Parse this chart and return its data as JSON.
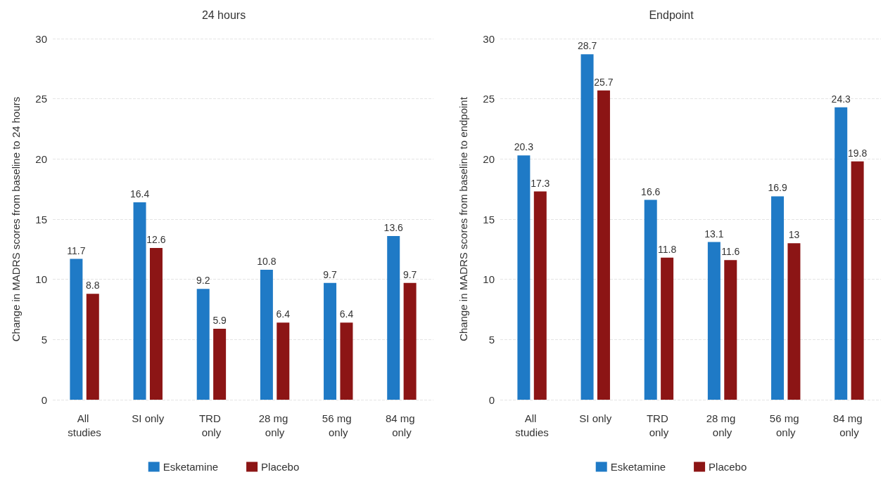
{
  "chart_data": [
    {
      "type": "bar",
      "title": "24 hours",
      "ylabel": "Change in MADRS scores from baseline to 24 hours",
      "categories": [
        "All studies",
        "SI only",
        "TRD only",
        "28 mg only",
        "56 mg only",
        "84 mg only"
      ],
      "series": [
        {
          "name": "Esketamine",
          "color": "#1f7ac6",
          "values": [
            11.7,
            16.4,
            9.2,
            10.8,
            9.7,
            13.6
          ]
        },
        {
          "name": "Placebo",
          "color": "#8c1515",
          "values": [
            8.8,
            12.6,
            5.9,
            6.4,
            6.4,
            9.7
          ]
        }
      ],
      "ylim": [
        0,
        30
      ],
      "yticks": [
        0,
        5,
        10,
        15,
        20,
        25,
        30
      ],
      "grid": "y",
      "legend": "bottom",
      "data_labels": true
    },
    {
      "type": "bar",
      "title": "Endpoint",
      "ylabel": "Change in MADRS scores from baseline to endpoint",
      "categories": [
        "All studies",
        "SI only",
        "TRD only",
        "28 mg only",
        "56 mg only",
        "84 mg only"
      ],
      "series": [
        {
          "name": "Esketamine",
          "color": "#1f7ac6",
          "values": [
            20.3,
            28.7,
            16.6,
            13.1,
            16.9,
            24.3
          ]
        },
        {
          "name": "Placebo",
          "color": "#8c1515",
          "values": [
            17.3,
            25.7,
            11.8,
            11.6,
            13,
            19.8
          ]
        }
      ],
      "ylim": [
        0,
        30
      ],
      "yticks": [
        0,
        5,
        10,
        15,
        20,
        25,
        30
      ],
      "grid": "y",
      "legend": "bottom",
      "data_labels": true
    }
  ]
}
